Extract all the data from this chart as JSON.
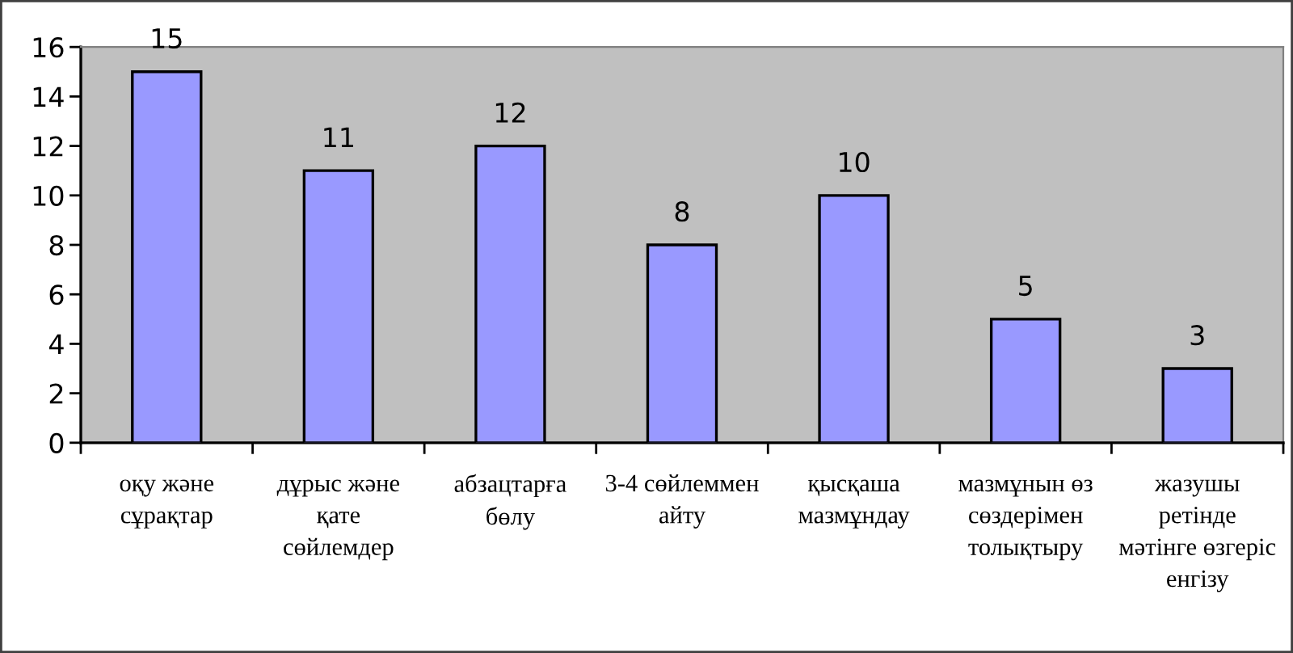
{
  "chart_data": {
    "type": "bar",
    "categories": [
      "оқу және сұрақтар",
      "дұрыс және қате сөйлемдер",
      "абзацтарға бөлу",
      "3-4 сөйлеммен айту",
      "қысқаша мазмұндау",
      "мазмұнын өз сөздерімен толықтыру",
      "жазушы ретінде мәтінге өзгеріс енгізу"
    ],
    "values": [
      15,
      11,
      12,
      8,
      10,
      5,
      3
    ],
    "color": "#9999ff",
    "ylim": [
      0,
      16
    ],
    "yticks": [
      0,
      2,
      4,
      6,
      8,
      10,
      12,
      14,
      16
    ],
    "data_labels": true
  }
}
